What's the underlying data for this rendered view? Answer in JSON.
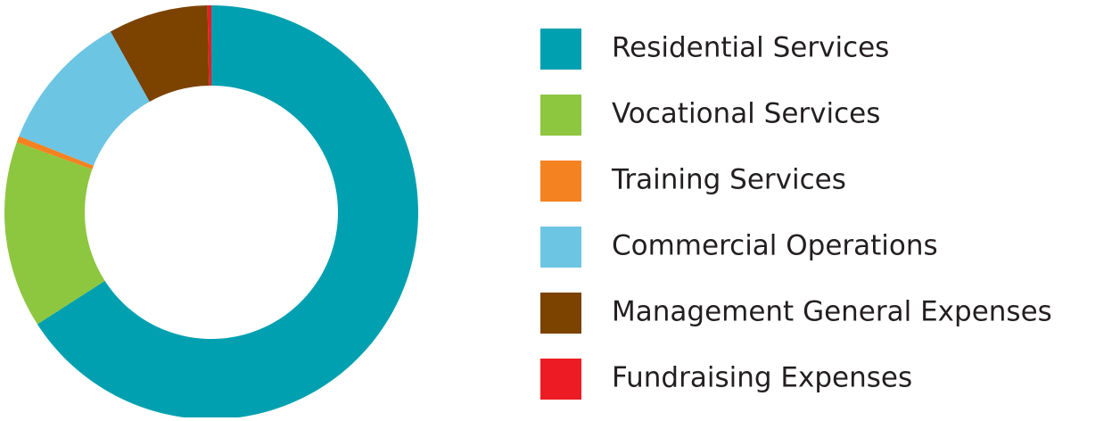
{
  "chart_data": {
    "type": "donut",
    "categories": [
      "Residential Services",
      "Vocational Services",
      "Training Services",
      "Commercial Operations",
      "Management General Expenses",
      "Fundraising Expenses"
    ],
    "values": [
      65.9,
      14.6,
      0.5,
      10.9,
      7.8,
      0.3
    ],
    "colors": [
      "#00a0b0",
      "#8dc63f",
      "#f58220",
      "#6dc5e4",
      "#7b4200",
      "#ed1c24"
    ],
    "legend": "right"
  }
}
